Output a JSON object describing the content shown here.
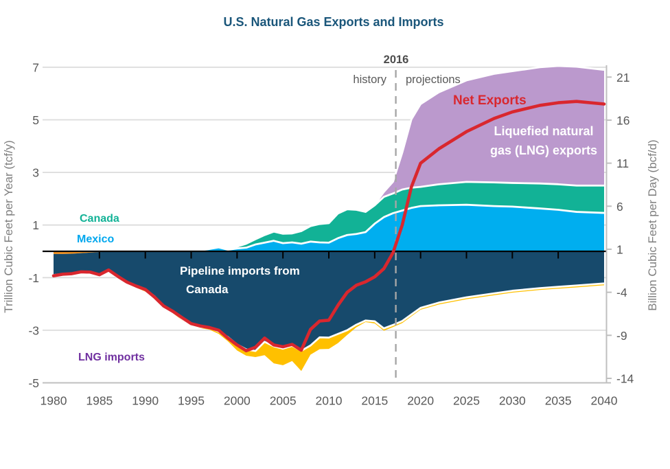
{
  "title": "U.S. Natural Gas Exports and Imports",
  "annotations": {
    "divider_year_label": "2016",
    "history_label": "history",
    "projections_label": "projections",
    "net_exports_label": "Net Exports",
    "lng_exports_label_line1": "Liquefied natural",
    "lng_exports_label_line2": "gas (LNG) exports",
    "canada_label": "Canada",
    "mexico_label": "Mexico",
    "pipeline_imports_label_line1": "Pipeline imports from",
    "pipeline_imports_label_line2": "Canada",
    "lng_imports_label": "LNG imports"
  },
  "colors": {
    "title": "#1a567a",
    "net_exports_line": "#d9272e",
    "mexico_exports_area": "#00aeef",
    "canada_exports_area": "#12b296",
    "lng_exports_area": "#bb99cd",
    "other_imports_area": "#f6921e",
    "canada_imports_area": "#174a6c",
    "lng_imports_area": "#ffc000",
    "canada_label_text": "#12b296",
    "mexico_label_text": "#00a7ee",
    "lng_imports_label_text": "#7030a0",
    "gridline": "#dcdcdc",
    "axis_line": "#bfbfbf",
    "zero_line": "#000000",
    "divider_line": "#a6a6a6",
    "tick_text": "#595959",
    "axis_title_text": "#7f7f7f"
  },
  "chart_data": {
    "type": "area",
    "title": "U.S. Natural Gas Exports and Imports",
    "xlabel": "",
    "ylabel_left": "Trillion Cubic Feet per Year (tcf/y)",
    "ylabel_right": "Billion Cubic Feet per Day (bcf/d)",
    "xlim": [
      1980,
      2040
    ],
    "ylim_left": [
      -5,
      7
    ],
    "ylim_right": [
      -14,
      21
    ],
    "grid": "horizontal",
    "divider_year": 2017.3,
    "left_ticks": [
      7,
      5,
      3,
      1,
      -1,
      -3,
      -5
    ],
    "right_ticks": [
      21,
      16,
      11,
      6,
      1,
      -4,
      -9,
      -14
    ],
    "x_ticks": [
      1980,
      1985,
      1990,
      1995,
      2000,
      2005,
      2010,
      2015,
      2020,
      2025,
      2030,
      2035,
      2040
    ],
    "x": [
      1980,
      1981,
      1982,
      1983,
      1984,
      1985,
      1986,
      1987,
      1988,
      1989,
      1990,
      1991,
      1992,
      1993,
      1994,
      1995,
      1996,
      1997,
      1998,
      1999,
      2000,
      2001,
      2002,
      2003,
      2004,
      2005,
      2006,
      2007,
      2008,
      2009,
      2010,
      2011,
      2012,
      2013,
      2014,
      2015,
      2016,
      2017,
      2018,
      2019,
      2020,
      2022,
      2025,
      2028,
      2030,
      2033,
      2035,
      2037,
      2040
    ],
    "series": [
      {
        "name": "Pipeline exports to Mexico",
        "group": "exports",
        "color": "#00aeef",
        "edge": true,
        "values": [
          0.03,
          0.03,
          0.03,
          0.03,
          0.03,
          0.03,
          0.04,
          0.04,
          0.04,
          0.02,
          0.02,
          0.02,
          0.02,
          0.03,
          0.05,
          0.06,
          0.04,
          0.09,
          0.15,
          0.06,
          0.11,
          0.14,
          0.26,
          0.33,
          0.4,
          0.31,
          0.34,
          0.29,
          0.37,
          0.34,
          0.33,
          0.5,
          0.62,
          0.66,
          0.73,
          1.05,
          1.3,
          1.45,
          1.55,
          1.65,
          1.72,
          1.75,
          1.77,
          1.72,
          1.7,
          1.63,
          1.58,
          1.5,
          1.46
        ]
      },
      {
        "name": "Pipeline exports to Canada",
        "group": "exports",
        "color": "#12b296",
        "edge": true,
        "values": [
          0.01,
          0.01,
          0.01,
          0.01,
          0.01,
          0.01,
          0.01,
          0.01,
          0.02,
          0.02,
          0.02,
          0.02,
          0.04,
          0.04,
          0.05,
          0.03,
          0.03,
          0.04,
          0.05,
          0.06,
          0.07,
          0.15,
          0.2,
          0.29,
          0.35,
          0.36,
          0.34,
          0.48,
          0.59,
          0.7,
          0.74,
          0.94,
          0.98,
          0.92,
          0.77,
          0.7,
          0.77,
          0.75,
          0.8,
          0.77,
          0.73,
          0.8,
          0.87,
          0.9,
          0.9,
          0.95,
          0.97,
          1.0,
          1.04
        ]
      },
      {
        "name": "Liquefied natural gas (LNG) exports",
        "group": "exports",
        "color": "#bb99cd",
        "edge": true,
        "values": [
          0.02,
          0.02,
          0.02,
          0.02,
          0.02,
          0.02,
          0.02,
          0.02,
          0.02,
          0.02,
          0.02,
          0.02,
          0.02,
          0.02,
          0.02,
          0.02,
          0.02,
          0.02,
          0.02,
          0.02,
          0.02,
          0.02,
          0.02,
          0.02,
          0.02,
          0.02,
          0.02,
          0.02,
          0.02,
          0.02,
          0.02,
          0.02,
          0.02,
          0.02,
          0.02,
          0.03,
          0.19,
          0.45,
          1.4,
          2.6,
          3.15,
          3.5,
          3.86,
          4.13,
          4.25,
          4.42,
          4.5,
          4.52,
          4.4
        ]
      },
      {
        "name": "Other pipeline imports",
        "group": "imports",
        "color": "#f6921e",
        "edge": false,
        "values": [
          0.1,
          0.1,
          0.09,
          0.07,
          0.05,
          0.03,
          0.02,
          0.01,
          0,
          0,
          0,
          0,
          0,
          0,
          0,
          0,
          0,
          0,
          0,
          0,
          0,
          0,
          0,
          0,
          0,
          0,
          0,
          0,
          0,
          0,
          0,
          0,
          0,
          0,
          0,
          0,
          0,
          0,
          0,
          0,
          0,
          0,
          0,
          0,
          0,
          0,
          0,
          0,
          0
        ]
      },
      {
        "name": "Pipeline imports from Canada",
        "group": "imports",
        "color": "#174a6c",
        "edge": true,
        "values": [
          0.8,
          0.76,
          0.78,
          0.72,
          0.75,
          0.92,
          0.75,
          0.99,
          1.22,
          1.34,
          1.45,
          1.71,
          2.09,
          2.27,
          2.57,
          2.82,
          2.88,
          2.9,
          3.05,
          3.26,
          3.54,
          3.73,
          3.79,
          3.44,
          3.61,
          3.7,
          3.59,
          3.78,
          3.58,
          3.27,
          3.28,
          3.14,
          3.0,
          2.79,
          2.63,
          2.66,
          2.93,
          2.8,
          2.65,
          2.4,
          2.15,
          1.95,
          1.75,
          1.6,
          1.5,
          1.4,
          1.35,
          1.3,
          1.22
        ]
      },
      {
        "name": "Liquefied natural gas (LNG) imports",
        "group": "imports",
        "color": "#ffc000",
        "edge": false,
        "values": [
          0.08,
          0.04,
          0.01,
          0.01,
          0.01,
          0,
          0,
          0,
          0,
          0.04,
          0.08,
          0.06,
          0.04,
          0.08,
          0.05,
          0.02,
          0.04,
          0.08,
          0.09,
          0.16,
          0.23,
          0.24,
          0.23,
          0.51,
          0.65,
          0.63,
          0.58,
          0.77,
          0.35,
          0.45,
          0.43,
          0.35,
          0.18,
          0.1,
          0.06,
          0.08,
          0.09,
          0.08,
          0.08,
          0.07,
          0.07,
          0.07,
          0.07,
          0.07,
          0.07,
          0.07,
          0.07,
          0.07,
          0.07
        ]
      },
      {
        "name": "Net Exports",
        "group": "line",
        "color": "#d9272e",
        "values": [
          -0.93,
          -0.87,
          -0.85,
          -0.78,
          -0.79,
          -0.89,
          -0.71,
          -0.95,
          -1.17,
          -1.32,
          -1.45,
          -1.74,
          -2.08,
          -2.28,
          -2.52,
          -2.75,
          -2.84,
          -2.9,
          -3.0,
          -3.3,
          -3.56,
          -3.78,
          -3.65,
          -3.3,
          -3.56,
          -3.63,
          -3.54,
          -3.76,
          -2.97,
          -2.65,
          -2.62,
          -2.05,
          -1.56,
          -1.29,
          -1.16,
          -0.97,
          -0.66,
          -0.05,
          1.0,
          2.45,
          3.35,
          3.9,
          4.55,
          5.05,
          5.3,
          5.55,
          5.65,
          5.7,
          5.6
        ]
      }
    ]
  }
}
